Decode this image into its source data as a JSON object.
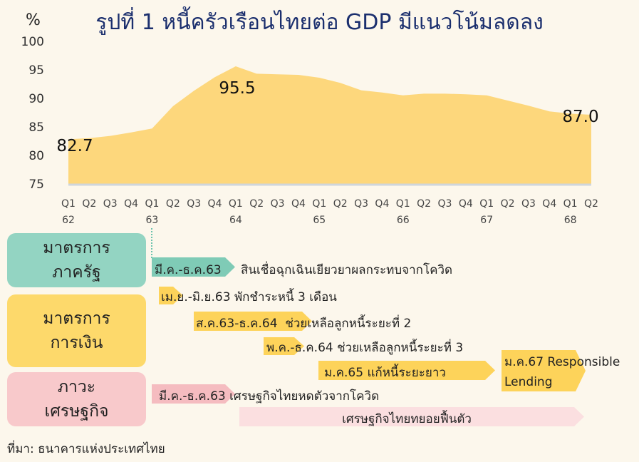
{
  "title": "รูปที่ 1 หนี้ครัวเรือนไทยต่อ GDP มีแนวโน้มลดลง",
  "chart_data": {
    "type": "area",
    "title": "รูปที่ 1 หนี้ครัวเรือนไทยต่อ GDP มีแนวโน้มลดลง",
    "ylabel": "%",
    "ylim": [
      75,
      100
    ],
    "yticks": [
      "75",
      "80",
      "85",
      "90",
      "95",
      "100"
    ],
    "x_quarters": [
      "Q1",
      "Q2",
      "Q3",
      "Q4",
      "Q1",
      "Q2",
      "Q3",
      "Q4",
      "Q1",
      "Q2",
      "Q3",
      "Q4",
      "Q1",
      "Q2",
      "Q3",
      "Q4",
      "Q1",
      "Q2",
      "Q3",
      "Q4",
      "Q1",
      "Q2",
      "Q3",
      "Q4",
      "Q1",
      "Q2"
    ],
    "x_years": [
      "62",
      "63",
      "64",
      "65",
      "66",
      "67",
      "68"
    ],
    "values": [
      82.7,
      82.9,
      83.3,
      83.9,
      84.6,
      88.5,
      91.2,
      93.6,
      95.5,
      94.2,
      94.1,
      94.0,
      93.5,
      92.6,
      91.3,
      90.9,
      90.4,
      90.7,
      90.7,
      90.6,
      90.4,
      89.5,
      88.6,
      87.6,
      87.2,
      87.0
    ],
    "annotations": [
      "82.7",
      "95.5",
      "87.0"
    ],
    "color": "#fdd77c",
    "grid": false
  },
  "categories": [
    {
      "line1": "มาตรการ",
      "line2": "ภาครัฐ",
      "color": "#93d4c2"
    },
    {
      "line1": "มาตรการ",
      "line2": "การเงิน",
      "color": "#fdd96b"
    },
    {
      "line1": "ภาวะ",
      "line2": "เศรษฐกิจ",
      "color": "#f8c9cb"
    }
  ],
  "measures": [
    {
      "period": "มี.ค.-ธ.ค.63",
      "desc": "สินเชื่อฉุกเฉินเยียวยาผลกระทบจากโควิด"
    },
    {
      "period": "เม.ย.-มิ.ย.63",
      "desc": "พักชำระหนี้ 3 เดือน"
    },
    {
      "period": "ส.ค.63-ธ.ค.64",
      "desc": "ช่วยเหลือลูกหนี้ระยะที่ 2"
    },
    {
      "period": "พ.ค.-ธ.ค.64",
      "desc": "ช่วยเหลือลูกหนี้ระยะที่ 3"
    },
    {
      "period": "ม.ค.65",
      "desc": "แก้หนี้ระยะยาว"
    },
    {
      "line1": "ม.ค.67 Responsible",
      "line2": "Lending"
    },
    {
      "period": "มี.ค.-ธ.ค.63",
      "desc": "เศรษฐกิจไทยหดตัวจากโควิด"
    },
    {
      "desc": "เศรษฐกิจไทยทยอยฟื้นตัว"
    }
  ],
  "source": "ที่มา: ธนาคารแห่งประเทศไทย"
}
